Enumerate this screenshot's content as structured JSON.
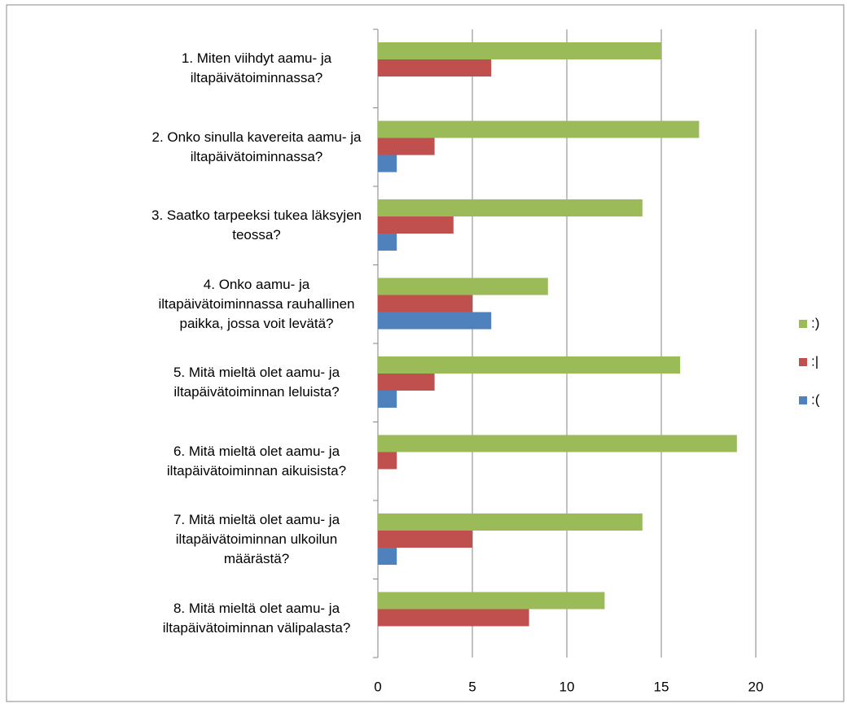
{
  "chart_data": {
    "type": "hbar",
    "categories": [
      "1. Miten viihdyt aamu- ja iltapäivätoiminnassa?",
      "2. Onko sinulla kavereita aamu- ja iltapäivätoiminnassa?",
      "3. Saatko tarpeeksi tukea läksyjen teossa?",
      "4. Onko aamu- ja iltapäivätoiminnassa rauhallinen paikka, jossa voit levätä?",
      "5. Mitä mieltä olet aamu- ja iltapäivätoiminnan leluista?",
      "6. Mitä mieltä olet aamu- ja iltapäivätoiminnan aikuisista?",
      "7. Mitä mieltä olet aamu- ja iltapäivätoiminnan ulkoilun määrästä?",
      "8. Mitä mieltä olet aamu- ja iltapäivätoiminnan välipalasta?"
    ],
    "series": [
      {
        "name": ":)",
        "color": "#9bbb59",
        "values": [
          15,
          17,
          14,
          9,
          16,
          19,
          14,
          12
        ]
      },
      {
        "name": ":|",
        "color": "#c0504d",
        "values": [
          6,
          3,
          4,
          5,
          3,
          1,
          5,
          8
        ]
      },
      {
        "name": ":(",
        "color": "#4f81bd",
        "values": [
          0,
          1,
          1,
          6,
          1,
          0,
          1,
          0
        ]
      }
    ],
    "xlim": [
      0,
      20
    ],
    "xticks": [
      0,
      5,
      10,
      15,
      20
    ],
    "grid": true,
    "legend": "right"
  }
}
